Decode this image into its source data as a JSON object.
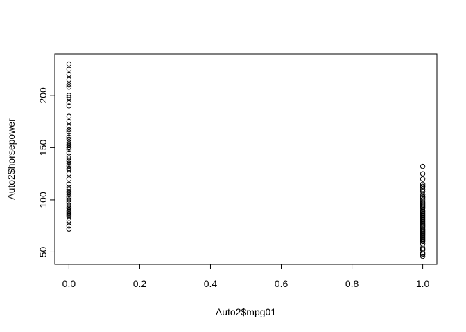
{
  "chart_data": {
    "type": "scatter",
    "title": "",
    "xlabel": "Auto2$mpg01",
    "ylabel": "Auto2$horsepower",
    "xlim": [
      -0.04,
      1.04
    ],
    "ylim": [
      38.4,
      239.6
    ],
    "x_ticks": [
      "0.0",
      "0.2",
      "0.4",
      "0.6",
      "0.8",
      "1.0"
    ],
    "y_ticks": [
      "50",
      "100",
      "150",
      "200"
    ],
    "grid": false,
    "legend": "none",
    "marker": "open-circle",
    "series": [
      {
        "x": [
          0,
          0,
          0,
          0,
          0,
          0,
          0,
          0,
          0,
          0,
          0,
          0,
          0,
          0,
          0,
          0,
          0,
          0,
          0,
          0,
          0,
          0,
          0,
          0,
          0,
          0,
          0,
          0,
          0,
          0,
          0,
          0,
          0,
          0,
          0,
          0,
          0,
          0,
          0,
          0,
          0,
          0,
          0,
          0,
          0,
          0,
          0,
          0,
          0,
          0,
          0,
          0,
          0,
          0,
          0,
          0,
          0,
          0,
          0,
          0
        ],
        "y": [
          72,
          75,
          78,
          80,
          84,
          85,
          86,
          87,
          88,
          89,
          90,
          92,
          93,
          95,
          97,
          98,
          100,
          102,
          103,
          105,
          107,
          108,
          110,
          112,
          115,
          120,
          125,
          129,
          130,
          132,
          133,
          135,
          137,
          138,
          140,
          142,
          145,
          148,
          150,
          152,
          153,
          155,
          158,
          160,
          165,
          167,
          170,
          175,
          180,
          190,
          193,
          198,
          200,
          208,
          210,
          215,
          220,
          225,
          230,
          150
        ]
      },
      {
        "x": [
          1,
          1,
          1,
          1,
          1,
          1,
          1,
          1,
          1,
          1,
          1,
          1,
          1,
          1,
          1,
          1,
          1,
          1,
          1,
          1,
          1,
          1,
          1,
          1,
          1,
          1,
          1,
          1,
          1,
          1,
          1,
          1,
          1,
          1,
          1,
          1,
          1,
          1,
          1,
          1,
          1,
          1,
          1,
          1,
          1,
          1,
          1,
          1,
          1,
          1,
          1,
          1,
          1,
          1,
          1,
          1
        ],
        "y": [
          46,
          48,
          49,
          52,
          53,
          54,
          58,
          60,
          61,
          62,
          63,
          64,
          65,
          66,
          67,
          68,
          69,
          70,
          71,
          72,
          74,
          75,
          76,
          77,
          78,
          79,
          80,
          81,
          82,
          83,
          84,
          85,
          86,
          87,
          88,
          89,
          90,
          92,
          93,
          94,
          95,
          96,
          97,
          98,
          100,
          102,
          103,
          105,
          108,
          110,
          112,
          113,
          115,
          120,
          125,
          132
        ]
      }
    ]
  }
}
